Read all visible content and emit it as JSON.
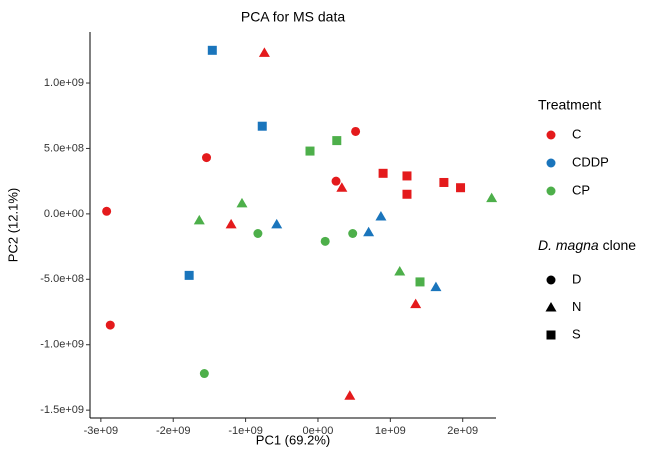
{
  "chart_data": {
    "type": "scatter",
    "title": "PCA for MS data",
    "x_label": "PC1 (69.2%)",
    "y_label": "PC2 (12.1%)",
    "xlim": [
      -3150000000.0,
      2460000000.0
    ],
    "ylim": [
      -1560000000.0,
      1390000000.0
    ],
    "xticks": [
      {
        "value": -3000000000.0,
        "label": "-3e+09"
      },
      {
        "value": -2000000000.0,
        "label": "-2e+09"
      },
      {
        "value": -1000000000.0,
        "label": "-1e+09"
      },
      {
        "value": 0,
        "label": "0e+00"
      },
      {
        "value": 1000000000.0,
        "label": "1e+09"
      },
      {
        "value": 2000000000.0,
        "label": "2e+09"
      }
    ],
    "yticks": [
      {
        "value": -1500000000.0,
        "label": "-1.5e+09"
      },
      {
        "value": -1000000000.0,
        "label": "-1.0e+09"
      },
      {
        "value": -500000000.0,
        "label": "-5.0e+08"
      },
      {
        "value": 0,
        "label": "0.0e+00"
      },
      {
        "value": 500000000.0,
        "label": "5.0e+08"
      },
      {
        "value": 1000000000.0,
        "label": "1.0e+09"
      }
    ],
    "color_legend_title": "Treatment",
    "shape_legend_title": {
      "italic": "D. magna",
      "rest": " clone"
    },
    "shapes": [
      {
        "name": "D",
        "marker": "circle"
      },
      {
        "name": "N",
        "marker": "triangle"
      },
      {
        "name": "S",
        "marker": "square"
      }
    ],
    "series": [
      {
        "name": "C",
        "color": "#e41a1c",
        "x": [
          -2920000000.0,
          -2870000000.0,
          -1540000000.0,
          520000000.0,
          250000000.0,
          -740000000.0,
          -1200000000.0,
          330000000.0,
          1350000000.0,
          440000000.0,
          900000000.0,
          1230000000.0,
          1230000000.0,
          1740000000.0,
          1970000000.0
        ],
        "values": [
          20000000.0,
          -850000000.0,
          430000000.0,
          630000000.0,
          250000000.0,
          1230000000.0,
          -80000000.0,
          200000000.0,
          -690000000.0,
          -1390000000.0,
          310000000.0,
          290000000.0,
          150000000.0,
          240000000.0,
          200000000.0
        ],
        "clone": [
          0,
          0,
          0,
          0,
          0,
          1,
          1,
          1,
          1,
          1,
          2,
          2,
          2,
          2,
          2
        ]
      },
      {
        "name": "CDDP",
        "color": "#1a75bc",
        "x": [
          -1460000000.0,
          -770000000.0,
          -1780000000.0,
          -570000000.0,
          870000000.0,
          700000000.0,
          1630000000.0
        ],
        "values": [
          1250000000.0,
          670000000.0,
          -470000000.0,
          -80000000.0,
          -20000000.0,
          -140000000.0,
          -560000000.0
        ],
        "clone": [
          2,
          2,
          2,
          1,
          1,
          1,
          1
        ]
      },
      {
        "name": "CP",
        "color": "#4daf4a",
        "x": [
          -110000000.0,
          260000000.0,
          1410000000.0,
          -1640000000.0,
          -1050000000.0,
          1130000000.0,
          2400000000.0,
          -830000000.0,
          100000000.0,
          480000000.0,
          -1570000000.0
        ],
        "values": [
          480000000.0,
          560000000.0,
          -520000000.0,
          -50000000.0,
          80000000.0,
          -440000000.0,
          120000000.0,
          -150000000.0,
          -210000000.0,
          -150000000.0,
          -1220000000.0
        ],
        "clone": [
          2,
          2,
          2,
          1,
          1,
          1,
          1,
          0,
          0,
          0,
          0
        ]
      }
    ]
  }
}
